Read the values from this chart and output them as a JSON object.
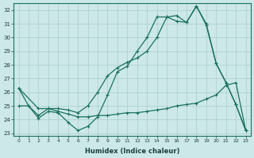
{
  "xlabel": "Humidex (Indice chaleur)",
  "bg_color": "#cce8e8",
  "grid_color": "#aacccc",
  "line_color": "#1a7060",
  "xlim": [
    -0.5,
    23.5
  ],
  "ylim": [
    22.8,
    32.5
  ],
  "yticks": [
    23,
    24,
    25,
    26,
    27,
    28,
    29,
    30,
    31,
    32
  ],
  "xticks": [
    0,
    1,
    2,
    3,
    4,
    5,
    6,
    7,
    8,
    9,
    10,
    11,
    12,
    13,
    14,
    15,
    16,
    17,
    18,
    19,
    20,
    21,
    22,
    23
  ],
  "line1_x": [
    0,
    1,
    2,
    3,
    4,
    5,
    6,
    7,
    8,
    9,
    10,
    11,
    12,
    13,
    14,
    15,
    16,
    17,
    18,
    19,
    20,
    21,
    22,
    23
  ],
  "line1_y": [
    26.3,
    25.0,
    24.1,
    24.6,
    24.5,
    23.8,
    23.2,
    23.5,
    24.2,
    25.8,
    27.5,
    27.9,
    29.0,
    30.0,
    31.5,
    31.5,
    31.6,
    31.1,
    32.3,
    30.9,
    28.1,
    26.7,
    25.1,
    23.2
  ],
  "line2_x": [
    0,
    2,
    3,
    4,
    5,
    6,
    7,
    8,
    9,
    10,
    11,
    12,
    13,
    14,
    15,
    16,
    17,
    18,
    19,
    20,
    21,
    22,
    23
  ],
  "line2_y": [
    26.3,
    24.8,
    24.8,
    24.8,
    24.7,
    24.5,
    25.0,
    26.0,
    27.2,
    27.8,
    28.2,
    28.5,
    29.0,
    30.0,
    31.5,
    31.2,
    31.1,
    32.3,
    31.0,
    28.1,
    26.7,
    25.1,
    23.2
  ],
  "line3_x": [
    0,
    1,
    2,
    3,
    4,
    5,
    6,
    7,
    8,
    9,
    10,
    11,
    12,
    13,
    14,
    15,
    16,
    17,
    18,
    19,
    20,
    21,
    22,
    23
  ],
  "line3_y": [
    25.0,
    25.0,
    24.3,
    24.8,
    24.6,
    24.4,
    24.2,
    24.2,
    24.3,
    24.3,
    24.4,
    24.5,
    24.5,
    24.6,
    24.7,
    24.8,
    25.0,
    25.1,
    25.2,
    25.5,
    25.8,
    26.5,
    26.7,
    23.2
  ]
}
